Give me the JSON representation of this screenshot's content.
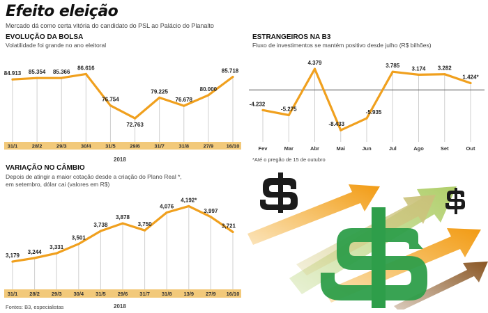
{
  "header": {
    "title": "Efeito eleição",
    "subtitle": "Mercado dá como certa vitória do candidato do PSL ao Palácio do Planalto"
  },
  "colors": {
    "line": "#f0a01e",
    "axis_band": "#f2c97a",
    "axis_text": "#333333",
    "grid": "#cfcfcf",
    "dollar_black": "#1b1b1b",
    "dollar_green": "#2e9e4a"
  },
  "footnotes": {
    "stock_year": "2018",
    "fx_year": "2018",
    "foreign_note": "*Até o pregão de 15 de outubro",
    "sources": "Fontes: B3, especialistas"
  },
  "illustration": {
    "dollar_symbol": "$",
    "icons": [
      "dollar-sign-icon",
      "dollar-sign-icon",
      "dollar-sign-icon",
      "arrow-up-icon"
    ]
  },
  "chart_data": [
    {
      "id": "bolsa",
      "type": "line",
      "title": "EVOLUÇÃO DA BOLSA",
      "subtitle": "Volatilidade foi grande no ano eleitoral",
      "categories": [
        "31/1",
        "28/2",
        "29/3",
        "30/4",
        "31/5",
        "29/6",
        "31/7",
        "31/8",
        "27/9",
        "16/10"
      ],
      "values": [
        84.913,
        85.354,
        85.366,
        86.616,
        76.754,
        72.763,
        79.225,
        76.678,
        80.0,
        85.718
      ],
      "labels": [
        "84.913",
        "85.354",
        "85.366",
        "86.616",
        "76.754",
        "72.763",
        "79.225",
        "76.678",
        "80.000",
        "85.718"
      ],
      "ylim": [
        68,
        88
      ],
      "xlabel": "2018",
      "grid": "vertical"
    },
    {
      "id": "estrangeiros",
      "type": "line",
      "title": "ESTRANGEIROS NA B3",
      "subtitle": "Fluxo de investimentos se mantém positivo desde julho (R$ bilhões)",
      "categories": [
        "Fev",
        "Mar",
        "Abr",
        "Mai",
        "Jun",
        "Jul",
        "Ago",
        "Set",
        "Out"
      ],
      "values": [
        -4.232,
        -5.275,
        4.379,
        -8.433,
        -5.935,
        3.785,
        3.174,
        3.282,
        1.424
      ],
      "labels": [
        "-4.232",
        "-5.275",
        "4.379",
        "-8.433",
        "-5.935",
        "3.785",
        "3.174",
        "3.282",
        "1.424*"
      ],
      "ylim": [
        -10,
        6
      ],
      "zero_line": true,
      "grid": "vertical"
    },
    {
      "id": "cambio",
      "type": "line",
      "title": "VARIAÇÃO NO CÂMBIO",
      "subtitle": [
        "Depois de atingir a maior cotação desde a criação do Plano Real *,",
        "em setembro, dólar cai (valores em R$)"
      ],
      "categories": [
        "31/1",
        "28/2",
        "29/3",
        "30/4",
        "31/5",
        "29/6",
        "31/7",
        "31/8",
        "13/9",
        "27/9",
        "16/10"
      ],
      "values": [
        3.179,
        3.244,
        3.331,
        3.501,
        3.738,
        3.878,
        3.75,
        4.076,
        4.192,
        3.997,
        3.721
      ],
      "labels": [
        "3,179",
        "3,244",
        "3,331",
        "3,501",
        "3,738",
        "3,878",
        "3,750",
        "4,076",
        "4,192*",
        "3,997",
        "3,721"
      ],
      "ylim": [
        2.9,
        4.35
      ],
      "xlabel": "2018",
      "grid": "vertical"
    }
  ]
}
